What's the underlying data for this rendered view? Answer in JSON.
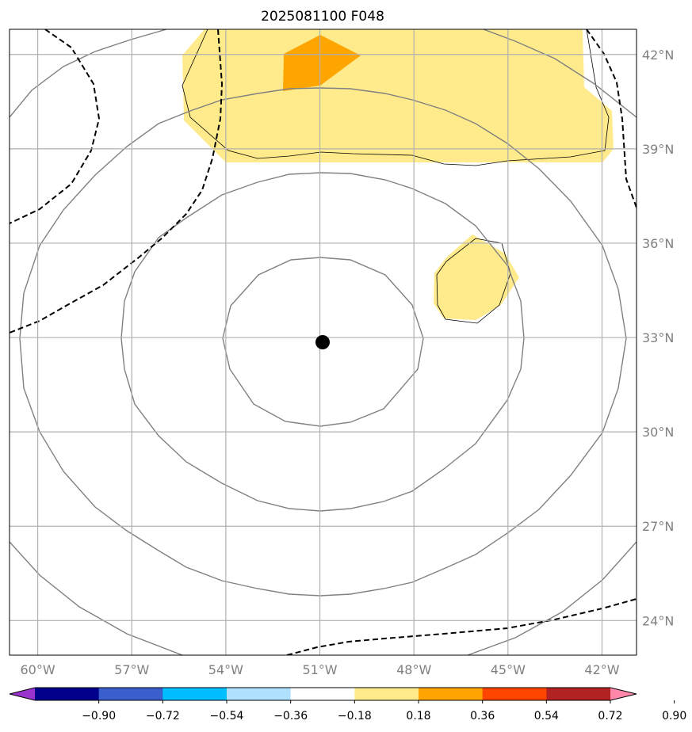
{
  "title": "2025081100 F048",
  "map": {
    "lon_labels": [
      "60°W",
      "57°W",
      "54°W",
      "51°W",
      "48°W",
      "45°W",
      "42°W"
    ],
    "lat_labels": [
      "42°N",
      "39°N",
      "36°N",
      "33°N",
      "30°N",
      "27°N",
      "24°N"
    ],
    "lon_values": [
      -60,
      -57,
      -54,
      -51,
      -48,
      -45,
      -42
    ],
    "lat_values": [
      42,
      39,
      36,
      33,
      30,
      27,
      24
    ],
    "extent": {
      "lon_min": -60.9,
      "lon_max": -40.9,
      "lat_min": 22.9,
      "lat_max": 42.8
    },
    "storm_center": {
      "lon": -51.0,
      "lat": 32.9
    },
    "gridlines": true
  },
  "colorbar": {
    "tick_labels": [
      "−0.90",
      "−0.72",
      "−0.54",
      "−0.36",
      "−0.18",
      "0.18",
      "0.36",
      "0.54",
      "0.72",
      "0.90"
    ],
    "boundaries": [
      -0.9,
      -0.72,
      -0.54,
      -0.36,
      -0.18,
      0.18,
      0.36,
      0.54,
      0.72,
      0.9
    ],
    "colors": [
      "#9a32cd",
      "#00008b",
      "#3a5fcd",
      "#00bfff",
      "#b0e2ff",
      "#ffffff",
      "#ffeb8c",
      "#ffa500",
      "#ff4500",
      "#b22222",
      "#ff88aa"
    ],
    "extend": "both"
  },
  "colors": {
    "contour_gray": "#808080",
    "grid_gray": "#b0b0b0",
    "fill_yellow": "#ffeb8c",
    "fill_orange": "#ffa500",
    "dashed": "#000000"
  }
}
